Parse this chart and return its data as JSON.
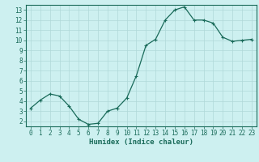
{
  "x": [
    0,
    1,
    2,
    3,
    4,
    5,
    6,
    7,
    8,
    9,
    10,
    11,
    12,
    13,
    14,
    15,
    16,
    17,
    18,
    19,
    20,
    21,
    22,
    23
  ],
  "y": [
    3.3,
    4.1,
    4.7,
    4.5,
    3.5,
    2.2,
    1.7,
    1.8,
    3.0,
    3.3,
    4.3,
    6.5,
    9.5,
    10.1,
    12.0,
    13.0,
    13.3,
    12.0,
    12.0,
    11.7,
    10.3,
    9.9,
    10.0,
    10.1
  ],
  "xlabel": "Humidex (Indice chaleur)",
  "ylabel": "",
  "line_color": "#1a6b5a",
  "marker": "+",
  "marker_color": "#1a6b5a",
  "bg_color": "#cdf0f0",
  "grid_color": "#b0d8d8",
  "ylim": [
    1.5,
    13.5
  ],
  "xlim": [
    -0.5,
    23.5
  ],
  "yticks": [
    2,
    3,
    4,
    5,
    6,
    7,
    8,
    9,
    10,
    11,
    12,
    13
  ],
  "xticks": [
    0,
    1,
    2,
    3,
    4,
    5,
    6,
    7,
    8,
    9,
    10,
    11,
    12,
    13,
    14,
    15,
    16,
    17,
    18,
    19,
    20,
    21,
    22,
    23
  ],
  "tick_label_color": "#1a6b5a",
  "axis_color": "#1a6b5a",
  "xlabel_fontsize": 6.5,
  "tick_fontsize": 5.5,
  "linewidth": 0.9,
  "markersize": 3.5,
  "markeredgewidth": 0.8
}
